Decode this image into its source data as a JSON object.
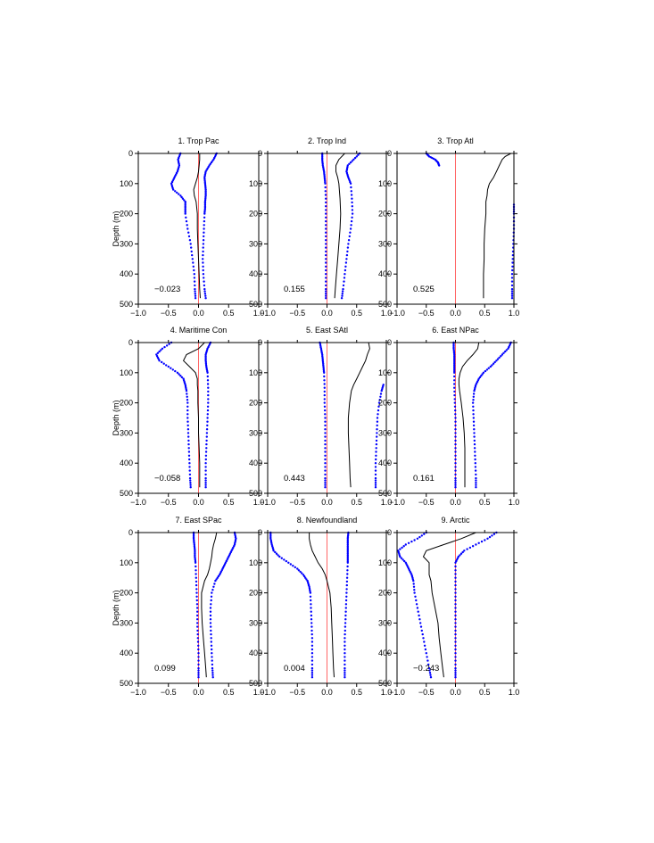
{
  "figure": {
    "ylabel": "Depth (m)",
    "xticks": [
      "−1.0",
      "−0.5",
      "0.0",
      "0.5",
      "1.0"
    ],
    "yticks": [
      "0",
      "100",
      "200",
      "300",
      "400",
      "500"
    ],
    "colors": {
      "mean": "#000000",
      "bounds": "#0000ff",
      "zero_line": "#ff6666"
    }
  },
  "chart_data": [
    {
      "type": "line",
      "title": "1. Trop Pac",
      "value_label": "−0.023",
      "xlim": [
        -1,
        1
      ],
      "ylim": [
        500,
        0
      ],
      "ylabel": "Depth (m)",
      "series": [
        {
          "role": "mean",
          "depth": [
            0,
            20,
            40,
            60,
            80,
            100,
            120,
            140,
            160,
            180,
            200,
            250,
            300,
            350,
            400,
            450,
            480
          ],
          "values": [
            0.02,
            0.02,
            0.01,
            0.0,
            -0.02,
            -0.05,
            -0.08,
            -0.07,
            -0.04,
            -0.03,
            -0.02,
            -0.02,
            -0.01,
            0.0,
            0.01,
            0.02,
            0.03
          ]
        },
        {
          "role": "upper",
          "depth": [
            0,
            20,
            40,
            60,
            80,
            100,
            120,
            140,
            160,
            180,
            200,
            250,
            300,
            350,
            400,
            450,
            480
          ],
          "values": [
            0.3,
            0.25,
            0.18,
            0.12,
            0.1,
            0.11,
            0.12,
            0.12,
            0.11,
            0.11,
            0.1,
            0.09,
            0.08,
            0.07,
            0.08,
            0.1,
            0.12
          ]
        },
        {
          "role": "lower",
          "depth": [
            0,
            20,
            40,
            60,
            80,
            100,
            120,
            140,
            160,
            180,
            200,
            250,
            300,
            350,
            400,
            450,
            480
          ],
          "values": [
            -0.3,
            -0.34,
            -0.32,
            -0.35,
            -0.4,
            -0.45,
            -0.42,
            -0.3,
            -0.22,
            -0.22,
            -0.22,
            -0.18,
            -0.13,
            -0.1,
            -0.07,
            -0.06,
            -0.05
          ]
        }
      ]
    },
    {
      "type": "line",
      "title": "2. Trop Ind",
      "value_label": "0.155",
      "xlim": [
        -1,
        1
      ],
      "ylim": [
        500,
        0
      ],
      "series": [
        {
          "role": "mean",
          "depth": [
            0,
            20,
            40,
            60,
            80,
            100,
            150,
            200,
            250,
            300,
            350,
            400,
            450,
            480
          ],
          "values": [
            0.3,
            0.2,
            0.15,
            0.15,
            0.18,
            0.2,
            0.22,
            0.23,
            0.22,
            0.2,
            0.18,
            0.16,
            0.14,
            0.13
          ]
        },
        {
          "role": "upper",
          "depth": [
            0,
            20,
            40,
            60,
            80,
            100,
            150,
            200,
            250,
            300,
            350,
            400,
            450,
            480
          ],
          "values": [
            0.55,
            0.45,
            0.35,
            0.33,
            0.36,
            0.4,
            0.42,
            0.43,
            0.4,
            0.36,
            0.33,
            0.3,
            0.27,
            0.25
          ]
        },
        {
          "role": "lower",
          "depth": [
            0,
            20,
            40,
            60,
            80,
            100,
            150,
            200,
            250,
            300,
            350,
            400,
            450,
            480
          ],
          "values": [
            -0.08,
            -0.08,
            -0.07,
            -0.05,
            -0.04,
            -0.03,
            -0.02,
            -0.02,
            -0.02,
            -0.02,
            -0.02,
            -0.02,
            -0.02,
            -0.02
          ]
        }
      ]
    },
    {
      "type": "line",
      "title": "3. Trop Atl",
      "value_label": "0.525",
      "xlim": [
        -1,
        1
      ],
      "ylim": [
        500,
        0
      ],
      "series": [
        {
          "role": "mean",
          "depth": [
            0,
            10,
            20,
            40,
            60,
            80,
            100,
            120,
            140,
            160,
            200,
            250,
            300,
            350,
            400,
            450,
            480
          ],
          "values": [
            0.95,
            0.85,
            0.8,
            0.75,
            0.7,
            0.65,
            0.58,
            0.55,
            0.54,
            0.52,
            0.52,
            0.5,
            0.49,
            0.49,
            0.48,
            0.48,
            0.48
          ]
        },
        {
          "role": "upper",
          "depth": [
            170,
            200,
            250,
            300,
            350,
            400,
            450,
            480
          ],
          "values": [
            1.0,
            1.0,
            1.0,
            0.99,
            0.98,
            0.97,
            0.97,
            0.97
          ]
        },
        {
          "role": "lower",
          "depth": [
            0,
            10,
            20,
            30,
            40
          ],
          "values": [
            -0.5,
            -0.45,
            -0.35,
            -0.3,
            -0.28
          ]
        }
      ]
    },
    {
      "type": "line",
      "title": "4. Maritime Con",
      "value_label": "−0.058",
      "xlim": [
        -1,
        1
      ],
      "ylim": [
        500,
        0
      ],
      "series": [
        {
          "role": "mean",
          "depth": [
            0,
            20,
            40,
            60,
            80,
            100,
            120,
            140,
            160,
            200,
            250,
            300,
            350,
            400,
            450,
            480
          ],
          "values": [
            0.1,
            0.0,
            -0.2,
            -0.25,
            -0.15,
            -0.05,
            -0.02,
            -0.02,
            -0.01,
            -0.01,
            0.0,
            0.0,
            0.01,
            0.02,
            0.02,
            0.02
          ]
        },
        {
          "role": "upper",
          "depth": [
            0,
            20,
            40,
            60,
            80,
            100,
            150,
            200,
            250,
            300,
            350,
            400,
            450,
            480
          ],
          "values": [
            0.2,
            0.15,
            0.12,
            0.12,
            0.13,
            0.15,
            0.16,
            0.16,
            0.15,
            0.14,
            0.13,
            0.12,
            0.12,
            0.12
          ]
        },
        {
          "role": "lower",
          "depth": [
            0,
            20,
            40,
            60,
            80,
            100,
            120,
            140,
            160,
            200,
            250,
            300,
            350,
            400,
            450,
            480
          ],
          "values": [
            -0.45,
            -0.6,
            -0.7,
            -0.65,
            -0.5,
            -0.35,
            -0.25,
            -0.22,
            -0.2,
            -0.18,
            -0.18,
            -0.17,
            -0.16,
            -0.15,
            -0.14,
            -0.13
          ]
        }
      ]
    },
    {
      "type": "line",
      "title": "5. East SAtl",
      "value_label": "0.443",
      "xlim": [
        -1,
        1
      ],
      "ylim": [
        500,
        0
      ],
      "series": [
        {
          "role": "mean",
          "depth": [
            0,
            20,
            40,
            60,
            80,
            100,
            120,
            140,
            160,
            200,
            250,
            300,
            350,
            400,
            450,
            480
          ],
          "values": [
            0.7,
            0.72,
            0.68,
            0.65,
            0.6,
            0.55,
            0.5,
            0.45,
            0.41,
            0.38,
            0.36,
            0.36,
            0.37,
            0.38,
            0.39,
            0.4
          ]
        },
        {
          "role": "upper",
          "depth": [
            140,
            160,
            200,
            250,
            300,
            350,
            400,
            450,
            480
          ],
          "values": [
            0.95,
            0.92,
            0.88,
            0.85,
            0.84,
            0.83,
            0.82,
            0.82,
            0.82
          ]
        },
        {
          "role": "lower",
          "depth": [
            0,
            20,
            40,
            60,
            80,
            100,
            150,
            200,
            250,
            300,
            350,
            400,
            450,
            480
          ],
          "values": [
            -0.12,
            -0.1,
            -0.08,
            -0.07,
            -0.06,
            -0.05,
            -0.04,
            -0.04,
            -0.03,
            -0.03,
            -0.03,
            -0.03,
            -0.03,
            -0.03
          ]
        }
      ]
    },
    {
      "type": "line",
      "title": "6. East NPac",
      "value_label": "0.161",
      "xlim": [
        -1,
        1
      ],
      "ylim": [
        500,
        0
      ],
      "series": [
        {
          "role": "mean",
          "depth": [
            0,
            20,
            40,
            60,
            80,
            100,
            120,
            140,
            160,
            200,
            250,
            300,
            350,
            400,
            450,
            480
          ],
          "values": [
            0.4,
            0.38,
            0.3,
            0.2,
            0.12,
            0.08,
            0.06,
            0.06,
            0.07,
            0.1,
            0.13,
            0.15,
            0.16,
            0.16,
            0.16,
            0.16
          ]
        },
        {
          "role": "upper",
          "depth": [
            0,
            20,
            40,
            60,
            80,
            100,
            120,
            140,
            160,
            200,
            250,
            300,
            350,
            400,
            450,
            480
          ],
          "values": [
            0.95,
            0.9,
            0.8,
            0.7,
            0.6,
            0.48,
            0.4,
            0.35,
            0.32,
            0.3,
            0.31,
            0.32,
            0.33,
            0.34,
            0.35,
            0.35
          ]
        },
        {
          "role": "lower",
          "depth": [
            0,
            20,
            40,
            60,
            80,
            100,
            150,
            200,
            250,
            300,
            350,
            400,
            450,
            480
          ],
          "values": [
            -0.03,
            -0.03,
            -0.02,
            -0.02,
            -0.02,
            -0.02,
            -0.02,
            -0.01,
            0.0,
            0.0,
            0.0,
            0.0,
            0.0,
            0.0
          ]
        }
      ]
    },
    {
      "type": "line",
      "title": "7. East SPac",
      "value_label": "0.099",
      "xlim": [
        -1,
        1
      ],
      "ylim": [
        500,
        0
      ],
      "series": [
        {
          "role": "mean",
          "depth": [
            0,
            20,
            40,
            60,
            80,
            100,
            120,
            140,
            160,
            200,
            250,
            300,
            350,
            400,
            450,
            480
          ],
          "values": [
            0.3,
            0.28,
            0.25,
            0.23,
            0.22,
            0.2,
            0.18,
            0.15,
            0.1,
            0.05,
            0.05,
            0.06,
            0.08,
            0.1,
            0.12,
            0.13
          ]
        },
        {
          "role": "upper",
          "depth": [
            0,
            20,
            40,
            60,
            80,
            100,
            120,
            140,
            160,
            200,
            250,
            300,
            350,
            400,
            450,
            480
          ],
          "values": [
            0.6,
            0.62,
            0.6,
            0.55,
            0.5,
            0.45,
            0.4,
            0.35,
            0.28,
            0.22,
            0.2,
            0.2,
            0.21,
            0.22,
            0.23,
            0.24
          ]
        },
        {
          "role": "lower",
          "depth": [
            0,
            20,
            40,
            60,
            80,
            100,
            150,
            200,
            250,
            300,
            350,
            400,
            450,
            480
          ],
          "values": [
            -0.08,
            -0.08,
            -0.07,
            -0.06,
            -0.06,
            -0.05,
            -0.04,
            -0.03,
            -0.02,
            -0.02,
            -0.01,
            0.0,
            0.0,
            0.0
          ]
        }
      ]
    },
    {
      "type": "line",
      "title": "8. Newfoundland",
      "value_label": "0.004",
      "xlim": [
        -1,
        1
      ],
      "ylim": [
        500,
        0
      ],
      "series": [
        {
          "role": "mean",
          "depth": [
            0,
            20,
            40,
            60,
            80,
            100,
            120,
            140,
            160,
            200,
            250,
            300,
            350,
            400,
            450,
            480
          ],
          "values": [
            -0.3,
            -0.3,
            -0.28,
            -0.25,
            -0.2,
            -0.15,
            -0.08,
            -0.03,
            0.0,
            0.05,
            0.07,
            0.08,
            0.09,
            0.1,
            0.11,
            0.12
          ]
        },
        {
          "role": "upper",
          "depth": [
            0,
            20,
            40,
            60,
            80,
            100,
            150,
            200,
            250,
            300,
            350,
            400,
            450,
            480
          ],
          "values": [
            0.36,
            0.35,
            0.35,
            0.35,
            0.35,
            0.35,
            0.34,
            0.33,
            0.32,
            0.31,
            0.3,
            0.3,
            0.3,
            0.3
          ]
        },
        {
          "role": "lower",
          "depth": [
            0,
            20,
            40,
            60,
            80,
            100,
            120,
            140,
            160,
            180,
            200,
            250,
            300,
            350,
            400,
            450,
            480
          ],
          "values": [
            -0.95,
            -0.95,
            -0.93,
            -0.9,
            -0.8,
            -0.65,
            -0.5,
            -0.4,
            -0.33,
            -0.3,
            -0.28,
            -0.27,
            -0.26,
            -0.25,
            -0.25,
            -0.25,
            -0.25
          ]
        }
      ]
    },
    {
      "type": "line",
      "title": "9. Arctic",
      "value_label": "−0.243",
      "xlim": [
        -1,
        1
      ],
      "ylim": [
        500,
        0
      ],
      "series": [
        {
          "role": "mean",
          "depth": [
            0,
            20,
            40,
            60,
            80,
            100,
            120,
            140,
            160,
            200,
            250,
            300,
            350,
            400,
            450,
            480
          ],
          "values": [
            0.35,
            0.1,
            -0.2,
            -0.5,
            -0.55,
            -0.45,
            -0.45,
            -0.45,
            -0.42,
            -0.4,
            -0.35,
            -0.3,
            -0.28,
            -0.25,
            -0.22,
            -0.2
          ]
        },
        {
          "role": "upper",
          "depth": [
            0,
            20,
            40,
            60,
            80,
            100,
            150,
            200,
            250,
            300,
            350,
            400,
            450,
            480
          ],
          "values": [
            0.7,
            0.55,
            0.35,
            0.15,
            0.05,
            0.0,
            0.0,
            0.0,
            0.0,
            0.0,
            0.0,
            0.0,
            0.0,
            0.0
          ]
        },
        {
          "role": "lower",
          "depth": [
            0,
            20,
            40,
            60,
            80,
            100,
            120,
            140,
            160,
            200,
            250,
            300,
            350,
            400,
            450,
            480
          ],
          "values": [
            -0.5,
            -0.65,
            -0.85,
            -0.98,
            -0.95,
            -0.85,
            -0.8,
            -0.75,
            -0.72,
            -0.7,
            -0.65,
            -0.6,
            -0.55,
            -0.5,
            -0.45,
            -0.42
          ]
        }
      ]
    }
  ]
}
